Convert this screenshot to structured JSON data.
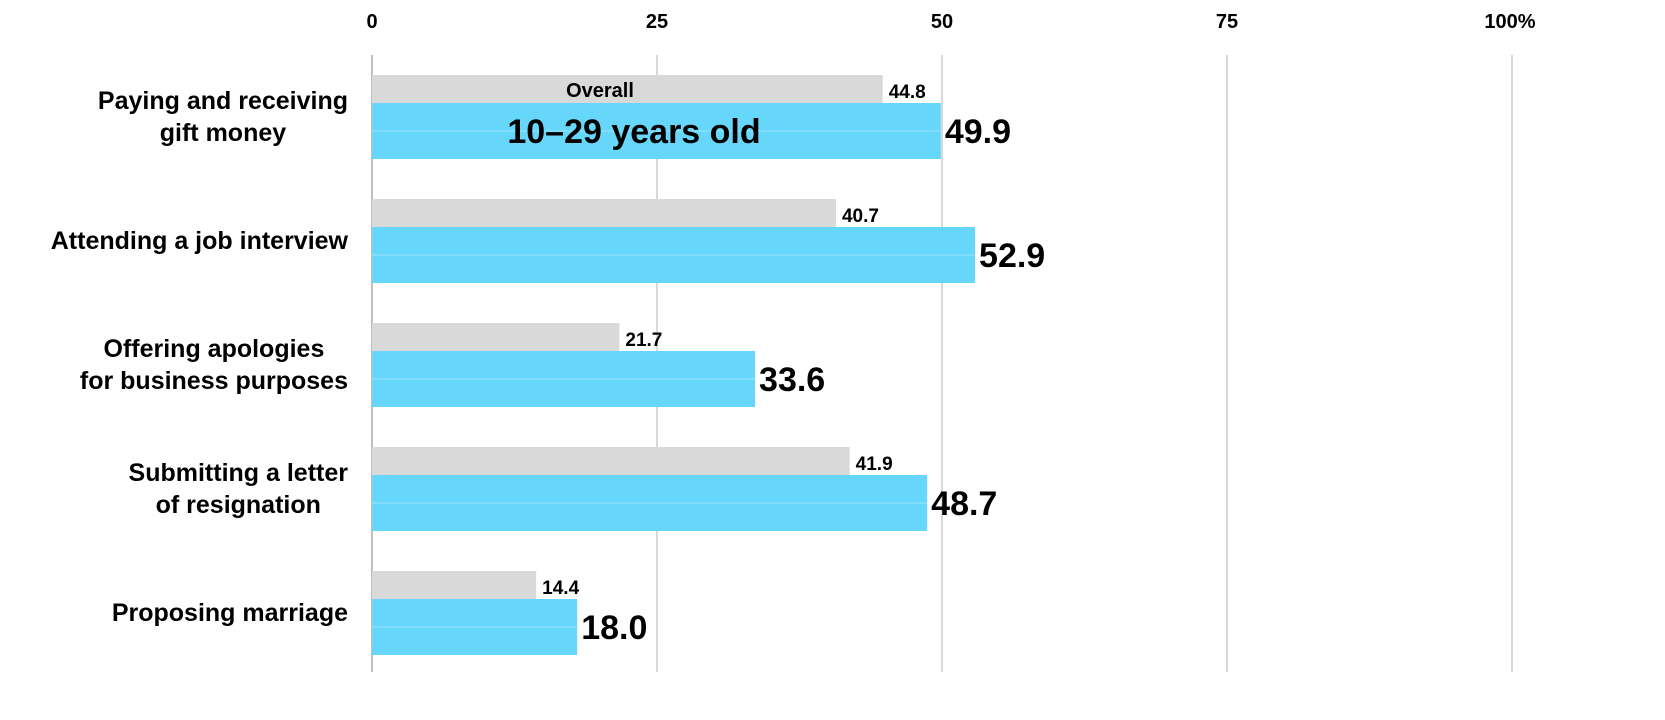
{
  "chart_data": {
    "type": "bar",
    "orientation": "horizontal",
    "title": "",
    "xlabel": "",
    "ylabel": "",
    "xlim": [
      0,
      100
    ],
    "grid": true,
    "x_ticks": [
      {
        "value": 0,
        "label": "0"
      },
      {
        "value": 25,
        "label": "25"
      },
      {
        "value": 50,
        "label": "50"
      },
      {
        "value": 75,
        "label": "75"
      },
      {
        "value": 100,
        "label": "100%"
      }
    ],
    "categories": [
      [
        "Paying and receiving",
        "gift money"
      ],
      [
        "Attending a job interview"
      ],
      [
        "Offering apologies",
        "for business purposes"
      ],
      [
        "Submitting a letter",
        "of resignation"
      ],
      [
        "Proposing marriage"
      ]
    ],
    "series": [
      {
        "name": "Overall",
        "color": "#d9d9d9",
        "values": [
          44.8,
          40.7,
          21.7,
          41.9,
          14.4
        ],
        "value_labels": [
          "44.8",
          "40.7",
          "21.7",
          "41.9",
          "14.4"
        ]
      },
      {
        "name": "10–29 years old",
        "color": "#66d6fa",
        "values": [
          49.9,
          52.9,
          33.6,
          48.7,
          18.0
        ],
        "value_labels": [
          "49.9",
          "52.9",
          "33.6",
          "48.7",
          "18.0"
        ]
      }
    ],
    "gridline_color": "#d9d9d9"
  }
}
